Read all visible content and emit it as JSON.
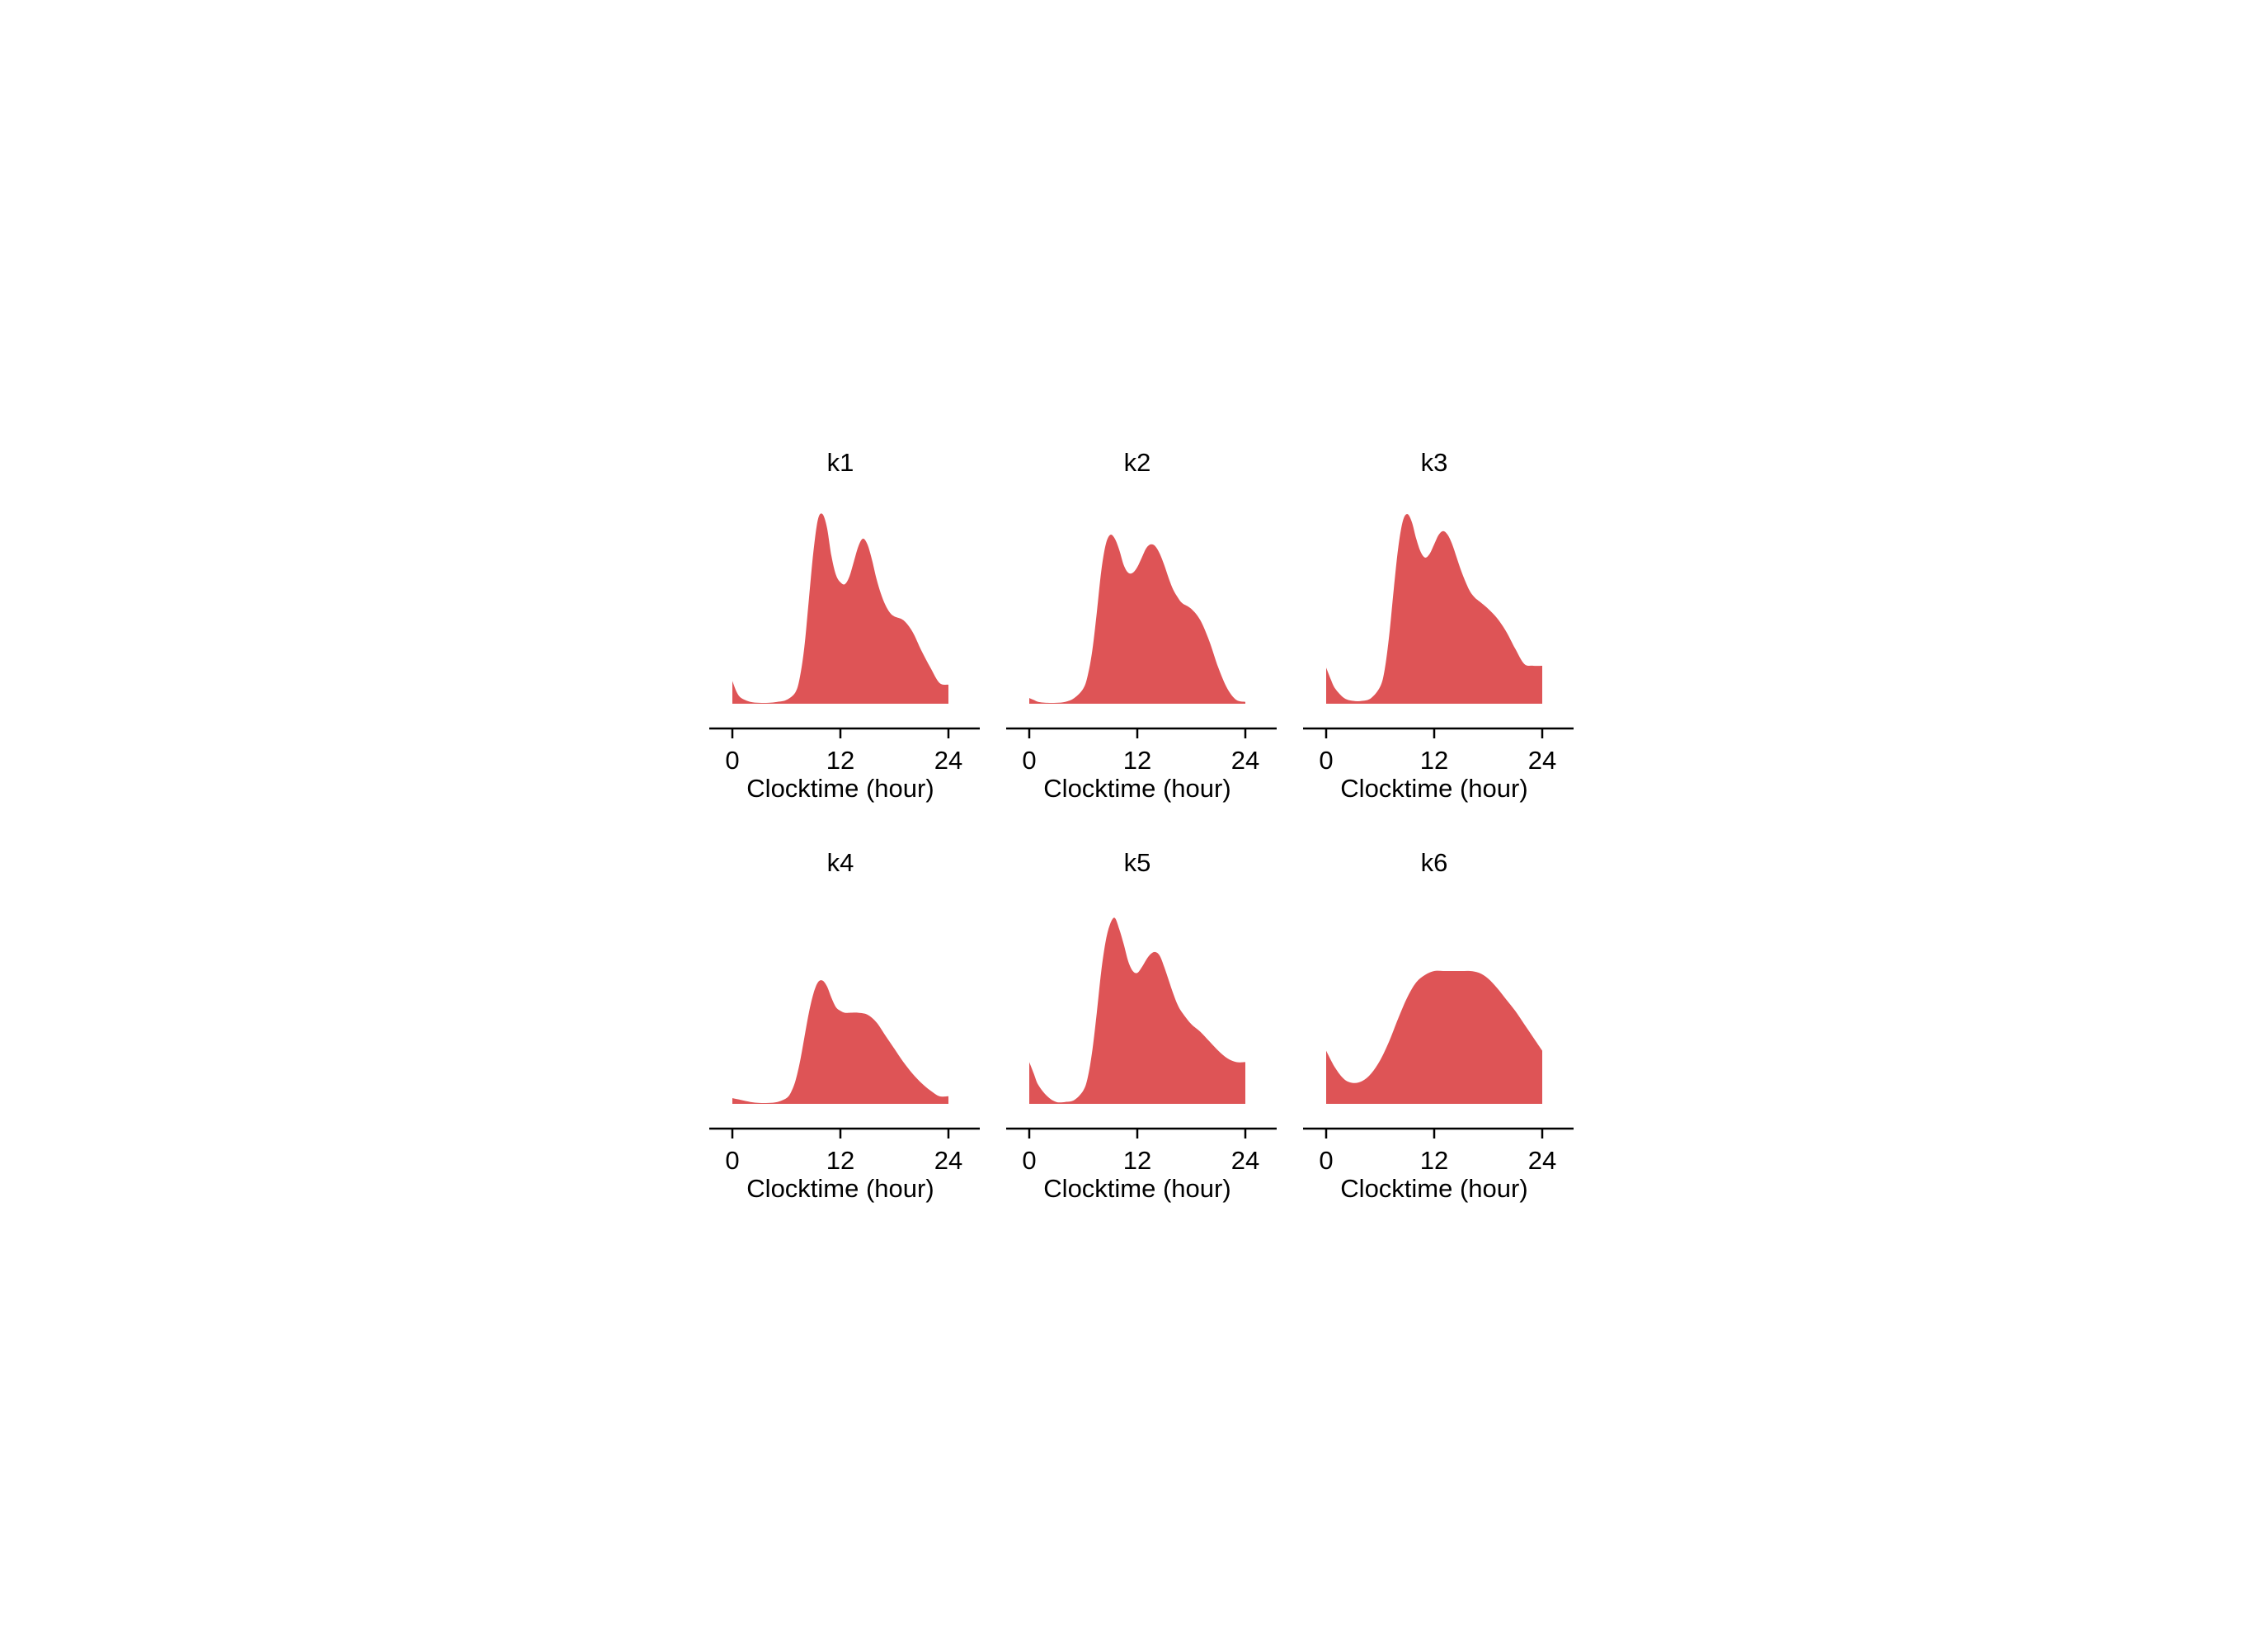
{
  "figure": {
    "fill_color": "#de5456",
    "axis_color": "#000000"
  },
  "chart_data": [
    {
      "type": "area",
      "title": "k1",
      "xlabel": "Clocktime (hour)",
      "ylabel": "",
      "xlim": [
        0,
        24
      ],
      "ylim": [
        0,
        1
      ],
      "xticks": [
        0,
        12,
        24
      ],
      "series": [
        {
          "x": [
            0,
            0.5,
            1,
            2,
            3,
            4,
            5,
            6,
            7,
            7.5,
            8,
            8.5,
            9,
            9.5,
            10,
            10.5,
            11,
            11.5,
            12,
            12.5,
            13,
            13.5,
            14,
            14.5,
            15,
            15.5,
            16,
            16.5,
            17,
            17.5,
            18,
            19,
            20,
            21,
            22,
            23,
            24
          ],
          "y": [
            0.12,
            0.06,
            0.03,
            0.01,
            0.005,
            0.005,
            0.01,
            0.02,
            0.06,
            0.14,
            0.3,
            0.55,
            0.8,
            0.97,
            1.0,
            0.93,
            0.78,
            0.68,
            0.64,
            0.63,
            0.67,
            0.75,
            0.83,
            0.87,
            0.84,
            0.76,
            0.66,
            0.58,
            0.52,
            0.48,
            0.46,
            0.44,
            0.38,
            0.28,
            0.19,
            0.11,
            0.1
          ]
        }
      ]
    },
    {
      "type": "area",
      "title": "k2",
      "xlabel": "Clocktime (hour)",
      "ylabel": "",
      "xlim": [
        0,
        24
      ],
      "ylim": [
        0,
        1
      ],
      "xticks": [
        0,
        12,
        24
      ],
      "series": [
        {
          "x": [
            0,
            0.5,
            1,
            2,
            3,
            4,
            5,
            6,
            6.5,
            7,
            7.5,
            8,
            8.5,
            9,
            9.5,
            10,
            10.5,
            11,
            11.5,
            12,
            12.5,
            13,
            13.5,
            14,
            14.5,
            15,
            15.5,
            16,
            16.5,
            17,
            18,
            19,
            20,
            21,
            22,
            23,
            24
          ],
          "y": [
            0.03,
            0.02,
            0.01,
            0.005,
            0.005,
            0.01,
            0.03,
            0.08,
            0.15,
            0.28,
            0.48,
            0.7,
            0.84,
            0.89,
            0.87,
            0.81,
            0.73,
            0.69,
            0.69,
            0.72,
            0.77,
            0.82,
            0.84,
            0.83,
            0.79,
            0.73,
            0.66,
            0.6,
            0.56,
            0.53,
            0.5,
            0.44,
            0.33,
            0.19,
            0.08,
            0.02,
            0.01
          ]
        }
      ]
    },
    {
      "type": "area",
      "title": "k3",
      "xlabel": "Clocktime (hour)",
      "ylabel": "",
      "xlim": [
        0,
        24
      ],
      "ylim": [
        0,
        1
      ],
      "xticks": [
        0,
        12,
        24
      ],
      "series": [
        {
          "x": [
            0,
            0.5,
            1,
            2,
            3,
            4,
            5,
            6,
            6.5,
            7,
            7.5,
            8,
            8.5,
            9,
            9.5,
            10,
            10.5,
            11,
            11.5,
            12,
            12.5,
            13,
            13.5,
            14,
            14.5,
            15,
            15.5,
            16,
            16.5,
            17,
            18,
            19,
            20,
            21,
            22,
            23,
            24
          ],
          "y": [
            0.19,
            0.13,
            0.08,
            0.03,
            0.015,
            0.015,
            0.03,
            0.09,
            0.18,
            0.36,
            0.6,
            0.82,
            0.96,
            1.0,
            0.96,
            0.87,
            0.8,
            0.77,
            0.79,
            0.84,
            0.89,
            0.91,
            0.89,
            0.84,
            0.77,
            0.7,
            0.64,
            0.59,
            0.56,
            0.54,
            0.5,
            0.45,
            0.38,
            0.29,
            0.21,
            0.2,
            0.2
          ]
        }
      ]
    },
    {
      "type": "area",
      "title": "k4",
      "xlabel": "Clocktime (hour)",
      "ylabel": "",
      "xlim": [
        0,
        24
      ],
      "ylim": [
        0,
        1
      ],
      "xticks": [
        0,
        12,
        24
      ],
      "series": [
        {
          "x": [
            0,
            1,
            2,
            3,
            4,
            5,
            6,
            6.5,
            7,
            7.5,
            8,
            8.5,
            9,
            9.5,
            10,
            10.5,
            11,
            11.5,
            12,
            12.5,
            13,
            14,
            15,
            16,
            17,
            18,
            19,
            20,
            21,
            22,
            23,
            24
          ],
          "y": [
            0.03,
            0.02,
            0.01,
            0.005,
            0.005,
            0.01,
            0.03,
            0.06,
            0.12,
            0.22,
            0.35,
            0.48,
            0.58,
            0.64,
            0.65,
            0.62,
            0.56,
            0.51,
            0.49,
            0.48,
            0.48,
            0.48,
            0.47,
            0.43,
            0.36,
            0.29,
            0.22,
            0.16,
            0.11,
            0.07,
            0.04,
            0.04
          ]
        }
      ]
    },
    {
      "type": "area",
      "title": "k5",
      "xlabel": "Clocktime (hour)",
      "ylabel": "",
      "xlim": [
        0,
        24
      ],
      "ylim": [
        0,
        1
      ],
      "xticks": [
        0,
        12,
        24
      ],
      "series": [
        {
          "x": [
            0,
            0.5,
            1,
            2,
            3,
            4,
            5,
            6,
            6.5,
            7,
            7.5,
            8,
            8.5,
            9,
            9.5,
            10,
            10.5,
            11,
            11.5,
            12,
            12.5,
            13,
            13.5,
            14,
            14.5,
            15,
            15.5,
            16,
            16.5,
            17,
            18,
            19,
            20,
            21,
            22,
            23,
            24
          ],
          "y": [
            0.22,
            0.16,
            0.1,
            0.04,
            0.01,
            0.01,
            0.02,
            0.07,
            0.14,
            0.28,
            0.48,
            0.7,
            0.86,
            0.95,
            0.98,
            0.92,
            0.84,
            0.75,
            0.7,
            0.69,
            0.72,
            0.76,
            0.79,
            0.8,
            0.78,
            0.72,
            0.65,
            0.58,
            0.52,
            0.48,
            0.42,
            0.38,
            0.33,
            0.28,
            0.24,
            0.22,
            0.22
          ]
        }
      ]
    },
    {
      "type": "area",
      "title": "k6",
      "xlabel": "Clocktime (hour)",
      "ylabel": "",
      "xlim": [
        0,
        24
      ],
      "ylim": [
        0,
        1
      ],
      "xticks": [
        0,
        12,
        24
      ],
      "series": [
        {
          "x": [
            0,
            1,
            2,
            3,
            4,
            5,
            6,
            7,
            8,
            9,
            10,
            11,
            12,
            13,
            14,
            15,
            16,
            17,
            18,
            19,
            20,
            21,
            22,
            23,
            24
          ],
          "y": [
            0.28,
            0.19,
            0.13,
            0.11,
            0.12,
            0.16,
            0.23,
            0.33,
            0.45,
            0.56,
            0.64,
            0.68,
            0.7,
            0.7,
            0.7,
            0.7,
            0.7,
            0.69,
            0.66,
            0.61,
            0.55,
            0.49,
            0.42,
            0.35,
            0.28
          ]
        }
      ]
    }
  ]
}
